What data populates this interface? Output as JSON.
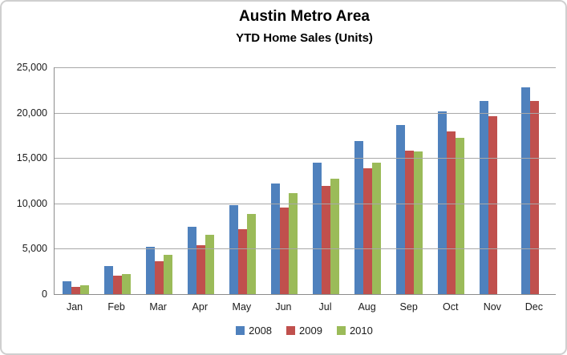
{
  "chart_data": {
    "type": "bar",
    "title": "Austin Metro Area",
    "subtitle": "YTD Home Sales (Units)",
    "categories": [
      "Jan",
      "Feb",
      "Mar",
      "Apr",
      "May",
      "Jun",
      "Jul",
      "Aug",
      "Sep",
      "Oct",
      "Nov",
      "Dec"
    ],
    "series": [
      {
        "name": "2008",
        "color": "#4F81BD",
        "values": [
          1400,
          3050,
          5200,
          7400,
          9800,
          12200,
          14500,
          16850,
          18600,
          20150,
          21300,
          22750
        ]
      },
      {
        "name": "2009",
        "color": "#C0504D",
        "values": [
          800,
          2050,
          3650,
          5400,
          7200,
          9550,
          11900,
          13900,
          15850,
          17900,
          19600,
          21300
        ]
      },
      {
        "name": "2010",
        "color": "#9BBB59",
        "values": [
          950,
          2250,
          4300,
          6500,
          8800,
          11100,
          12750,
          14450,
          15750,
          17200,
          null,
          null
        ]
      }
    ],
    "xlabel": "",
    "ylabel": "",
    "ylim": [
      0,
      25000
    ],
    "ytick_interval": 5000,
    "ytick_labels": [
      "0",
      "5,000",
      "10,000",
      "15,000",
      "20,000",
      "25,000"
    ],
    "grid": "horizontal",
    "legend_position": "bottom",
    "colors": {
      "axis_line": "#8c8c8c",
      "gridline": "#a8a8a8",
      "frame_border": "#cfcfcf",
      "background": "#ffffff",
      "text": "#1a1a1a"
    }
  }
}
